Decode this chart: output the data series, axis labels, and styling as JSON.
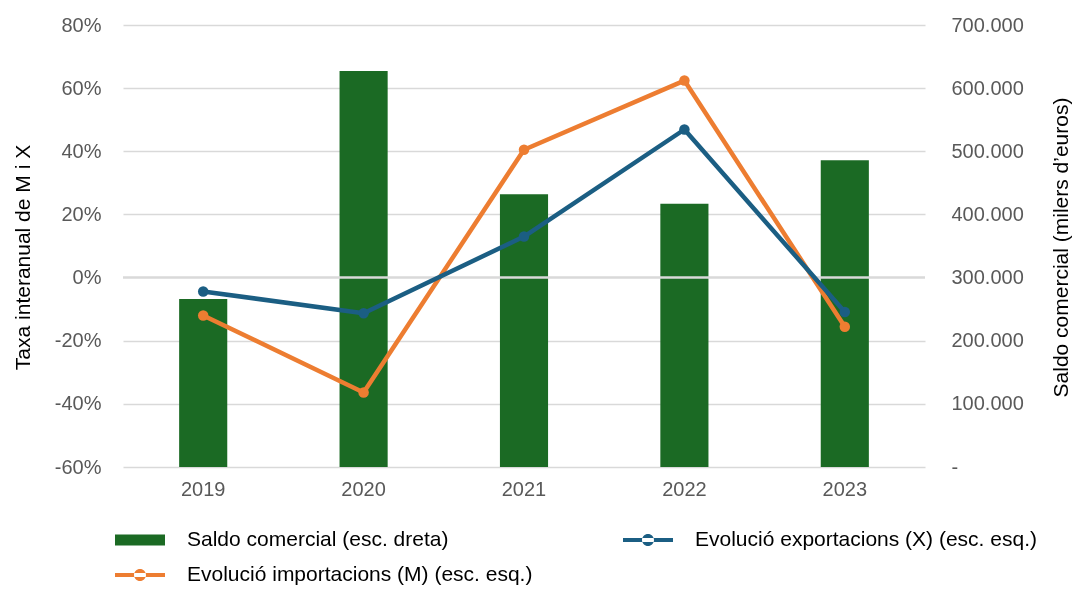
{
  "chart_data": {
    "type": "bar",
    "categories": [
      "2019",
      "2020",
      "2021",
      "2022",
      "2023"
    ],
    "series": [
      {
        "name": "Saldo comercial (esc. dreta)",
        "color": "#1b6a24",
        "values": [
          266000,
          627000,
          432000,
          417000,
          486000
        ],
        "axis": "y2"
      },
      {
        "name": "Evolució importacions (M) (esc. esq.)",
        "type": "line",
        "color": "#ed7d31",
        "values": [
          -12.0,
          -36.4,
          40.5,
          62.4,
          -15.6
        ]
      },
      {
        "name": "Evolució exportacions (X) (esc. esq.)",
        "type": "line",
        "color": "#1b5e83",
        "values": [
          -4.4,
          -11.3,
          13.0,
          46.9,
          -10.9
        ]
      }
    ],
    "ylabel": "Taxa interanual de M i X",
    "y2label": "Saldo comercial (milers d’euros)",
    "ylim": [
      -60,
      80
    ],
    "yticks": [
      {
        "value": -60,
        "label": "-60%"
      },
      {
        "value": -40,
        "label": "-40%"
      },
      {
        "value": -20,
        "label": "-20%"
      },
      {
        "value": 0,
        "label": "0%"
      },
      {
        "value": 20,
        "label": "20%"
      },
      {
        "value": 40,
        "label": "40%"
      },
      {
        "value": 60,
        "label": "60%"
      },
      {
        "value": 80,
        "label": "80%"
      }
    ],
    "y2lim": [
      0,
      700000
    ],
    "y2ticks": [
      {
        "value": 0,
        "label": "-"
      },
      {
        "value": 100000,
        "label": "100.000"
      },
      {
        "value": 200000,
        "label": "200.000"
      },
      {
        "value": 300000,
        "label": "300.000"
      },
      {
        "value": 400000,
        "label": "400.000"
      },
      {
        "value": 500000,
        "label": "500.000"
      },
      {
        "value": 600000,
        "label": "600.000"
      },
      {
        "value": 700000,
        "label": "700.000"
      }
    ],
    "ref_lines": [
      {
        "axis": "y",
        "value": 0,
        "color": "#d9d9d9"
      }
    ],
    "grid": "y",
    "legend": "bottom",
    "marker": "circle"
  }
}
